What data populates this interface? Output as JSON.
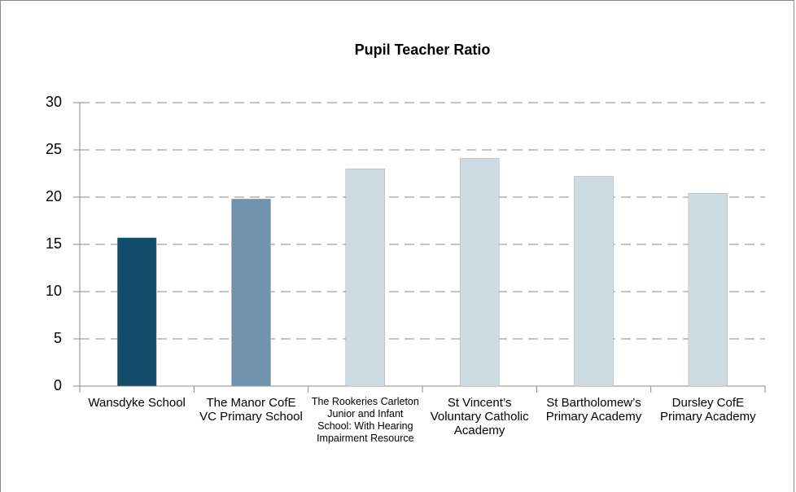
{
  "chart_data": {
    "type": "bar",
    "title": "Pupil Teacher Ratio",
    "categories": [
      "Wansdyke School",
      "The Manor CofE VC Primary School",
      "The Rookeries Carleton Junior and Infant School: With Hearing Impairment Resource",
      "St Vincent’s Voluntary Catholic Academy",
      "St Bartholomew’s Primary Academy",
      "Dursley CofE Primary Academy"
    ],
    "values": [
      15.7,
      19.8,
      23.0,
      24.1,
      22.2,
      20.4
    ],
    "colors": [
      "#124c6b",
      "#7094ad",
      "#cfdbe3",
      "#cfdbe3",
      "#cfdbe3",
      "#cfdbe3"
    ],
    "ylim": [
      0,
      30
    ],
    "yticks": [
      0,
      5,
      10,
      15,
      20,
      25,
      30
    ],
    "grid": true
  }
}
